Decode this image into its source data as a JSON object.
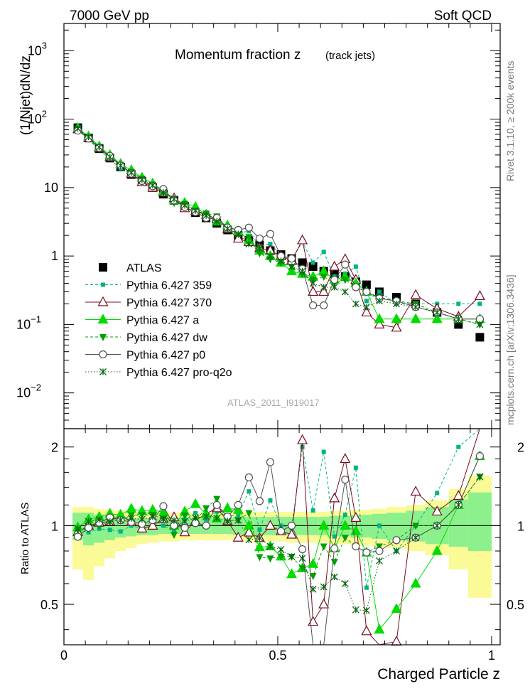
{
  "header": {
    "left": "7000 GeV pp",
    "right": "Soft QCD"
  },
  "side": {
    "rivet": "Rivet 3.1.10, ≥ 200k events",
    "mcplots": "mcplots.cern.ch [arXiv:1306.3436]"
  },
  "colors": {
    "atlas": "#000000",
    "p359": "#00b482",
    "p370": "#780a1e",
    "pa": "#00dc00",
    "pdw": "#00a000",
    "pp0": "#505050",
    "pq2o": "#0a6414",
    "band_inner": "#8cf08c",
    "band_outer": "#fafa96"
  },
  "chart_data": {
    "type": "line",
    "title": "Momentum fraction z",
    "subtitle": "(track jets)",
    "analysis_id": "ATLAS_2011_I919017",
    "xlabel": "Charged Particle z",
    "ylabel": "(1/Njet)dN/dz",
    "ratio_ylabel": "Ratio to ATLAS",
    "xlim": [
      0,
      1.02
    ],
    "ylim": [
      0.003,
      2500
    ],
    "yscale": "log",
    "ratio_ylim": [
      0.35,
      2.35
    ],
    "x_ticks": [
      "0",
      "0.5",
      "1"
    ],
    "y_ticks": [
      "10^-2",
      "10^-1",
      "1",
      "10",
      "10^2",
      "10^3"
    ],
    "ratio_ticks": [
      "0.5",
      "1",
      "2"
    ],
    "legend": [
      "ATLAS",
      "Pythia 6.427 359",
      "Pythia 6.427 370",
      "Pythia 6.427 a",
      "Pythia 6.427 dw",
      "Pythia 6.427 p0",
      "Pythia 6.427 pro-q2o"
    ],
    "x": [
      0.0325,
      0.0575,
      0.0825,
      0.1075,
      0.1325,
      0.1575,
      0.1825,
      0.2075,
      0.2325,
      0.2575,
      0.2825,
      0.3075,
      0.3325,
      0.3575,
      0.3825,
      0.4075,
      0.4325,
      0.4575,
      0.4825,
      0.5075,
      0.5325,
      0.5575,
      0.5825,
      0.6075,
      0.6325,
      0.6575,
      0.6825,
      0.7075,
      0.7375,
      0.7775,
      0.8225,
      0.8725,
      0.9225,
      0.9725
    ],
    "series": [
      {
        "name": "ATLAS",
        "values": [
          75,
          53,
          37,
          27,
          20,
          15.5,
          12.3,
          10,
          8,
          6.5,
          5.3,
          4.3,
          3.6,
          3.0,
          2.4,
          2.0,
          1.7,
          1.45,
          1.2,
          1.05,
          0.92,
          0.8,
          0.7,
          0.6,
          0.55,
          0.5,
          0.42,
          0.38,
          0.3,
          0.25,
          0.2,
          0.15,
          0.1,
          0.065
        ]
      },
      {
        "name": "Pythia 6.427 359",
        "values": [
          72,
          50,
          36,
          26,
          19,
          15.5,
          12,
          10.5,
          8,
          6.2,
          5.6,
          4.8,
          3.8,
          3.4,
          2.6,
          2.2,
          2.3,
          1.4,
          1.5,
          1.05,
          0.9,
          1.6,
          0.8,
          1.15,
          0.5,
          0.55,
          0.7,
          0.22,
          0.3,
          0.2,
          0.2,
          0.2,
          0.2,
          0.2
        ]
      },
      {
        "name": "Pythia 6.427 370",
        "values": [
          71,
          53,
          38,
          28,
          22,
          16,
          12,
          10,
          8.5,
          7,
          5,
          4.5,
          4,
          3.5,
          2.5,
          1.8,
          1.6,
          1.3,
          1.2,
          1.0,
          0.85,
          1.7,
          0.3,
          0.3,
          0.7,
          0.9,
          0.45,
          0.15,
          0.1,
          0.09,
          0.27,
          0.17,
          0.13,
          0.26
        ]
      },
      {
        "name": "Pythia 6.427 a",
        "values": [
          74,
          56,
          40,
          30,
          22,
          18,
          14,
          11.5,
          9,
          6.5,
          6,
          5.2,
          4,
          3.2,
          2.8,
          2.3,
          1.7,
          1.2,
          1.0,
          0.8,
          0.6,
          0.55,
          0.5,
          0.6,
          0.45,
          0.5,
          0.4,
          0.3,
          0.12,
          0.12,
          0.12,
          0.12,
          0.12,
          0.12
        ]
      },
      {
        "name": "Pythia 6.427 dw",
        "values": [
          72,
          52,
          37,
          28,
          21,
          17,
          13.5,
          11,
          8.5,
          6,
          5.8,
          4.5,
          4.2,
          3.8,
          2.5,
          2.1,
          1.9,
          1.1,
          0.9,
          0.8,
          0.7,
          0.55,
          0.45,
          0.5,
          0.4,
          0.45,
          0.35,
          0.3,
          0.25,
          0.22,
          0.2,
          0.15,
          0.12,
          0.1
        ]
      },
      {
        "name": "Pythia 6.427 p0",
        "values": [
          68,
          52,
          38,
          29,
          21,
          16,
          12.5,
          10.5,
          9.5,
          6.5,
          5.2,
          4.4,
          3.6,
          3.6,
          2.6,
          2.4,
          2.6,
          1.8,
          2.1,
          1.0,
          0.92,
          0.65,
          0.19,
          0.19,
          0.45,
          0.75,
          0.35,
          0.3,
          0.24,
          0.22,
          0.18,
          0.15,
          0.12,
          0.12
        ]
      },
      {
        "name": "Pythia 6.427 pro-q2o",
        "values": [
          73,
          55,
          39,
          28,
          21,
          16.5,
          13,
          10.8,
          8.5,
          6.8,
          5.5,
          4.6,
          3.9,
          3.2,
          2.5,
          2.1,
          1.5,
          1.3,
          1.0,
          0.85,
          0.7,
          0.6,
          0.4,
          0.35,
          0.35,
          0.3,
          0.2,
          0.18,
          0.22,
          0.2,
          0.18,
          0.15,
          0.12,
          0.1
        ]
      }
    ],
    "ratio_band": {
      "edges": [
        0.02,
        0.045,
        0.07,
        0.095,
        0.12,
        0.145,
        0.17,
        0.195,
        0.22,
        0.245,
        0.27,
        0.295,
        0.32,
        0.345,
        0.37,
        0.395,
        0.42,
        0.445,
        0.47,
        0.495,
        0.52,
        0.545,
        0.57,
        0.595,
        0.62,
        0.645,
        0.67,
        0.695,
        0.72,
        0.755,
        0.8,
        0.845,
        0.9,
        0.945,
        1.0
      ],
      "inner_lo": [
        0.88,
        0.84,
        0.86,
        0.88,
        0.9,
        0.91,
        0.92,
        0.92,
        0.93,
        0.93,
        0.93,
        0.93,
        0.93,
        0.93,
        0.93,
        0.92,
        0.92,
        0.92,
        0.92,
        0.92,
        0.92,
        0.92,
        0.92,
        0.92,
        0.91,
        0.91,
        0.9,
        0.9,
        0.89,
        0.88,
        0.87,
        0.85,
        0.83,
        0.8
      ],
      "inner_hi": [
        1.12,
        1.12,
        1.1,
        1.09,
        1.08,
        1.07,
        1.07,
        1.07,
        1.07,
        1.07,
        1.07,
        1.07,
        1.07,
        1.07,
        1.07,
        1.08,
        1.08,
        1.08,
        1.08,
        1.08,
        1.08,
        1.08,
        1.08,
        1.08,
        1.09,
        1.09,
        1.1,
        1.1,
        1.11,
        1.12,
        1.14,
        1.18,
        1.26,
        1.34
      ],
      "outer_lo": [
        0.68,
        0.62,
        0.7,
        0.75,
        0.8,
        0.82,
        0.85,
        0.86,
        0.87,
        0.87,
        0.88,
        0.88,
        0.88,
        0.88,
        0.88,
        0.87,
        0.87,
        0.87,
        0.87,
        0.87,
        0.86,
        0.86,
        0.86,
        0.86,
        0.85,
        0.85,
        0.84,
        0.84,
        0.83,
        0.82,
        0.8,
        0.77,
        0.68,
        0.53
      ],
      "outer_hi": [
        1.18,
        1.18,
        1.16,
        1.15,
        1.14,
        1.12,
        1.12,
        1.12,
        1.12,
        1.12,
        1.12,
        1.12,
        1.12,
        1.12,
        1.12,
        1.13,
        1.13,
        1.13,
        1.13,
        1.13,
        1.13,
        1.13,
        1.13,
        1.13,
        1.14,
        1.14,
        1.15,
        1.15,
        1.16,
        1.18,
        1.2,
        1.25,
        1.38,
        1.55
      ]
    }
  }
}
